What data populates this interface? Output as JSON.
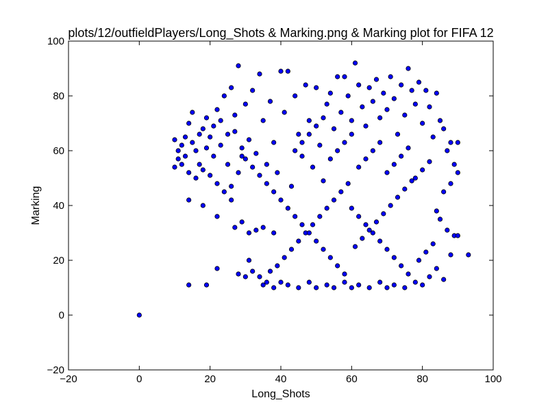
{
  "chart_data": {
    "type": "scatter",
    "title": "plots/12/outfieldPlayers/Long_Shots & Marking.png & Marking plot for FIFA 12",
    "xlabel": "Long_Shots",
    "ylabel": "Marking",
    "xlim": [
      -20,
      100
    ],
    "ylim": [
      -20,
      100
    ],
    "xticks": [
      "−20",
      "0",
      "20",
      "40",
      "60",
      "80",
      "100"
    ],
    "yticks": [
      "−20",
      "0",
      "20",
      "40",
      "60",
      "80",
      "100"
    ],
    "grid": false,
    "legend": "none",
    "marker_color": "#0000ff",
    "marker_edge": "#000000",
    "series": [
      {
        "points": [
          [
            0,
            0
          ],
          [
            14,
            11
          ],
          [
            19,
            11
          ],
          [
            22,
            17
          ],
          [
            28,
            15
          ],
          [
            30,
            14
          ],
          [
            31,
            20
          ],
          [
            32,
            16
          ],
          [
            34,
            14
          ],
          [
            35,
            11
          ],
          [
            36,
            12
          ],
          [
            22,
            36
          ],
          [
            18,
            40
          ],
          [
            14,
            42
          ],
          [
            26,
            42
          ],
          [
            27,
            32
          ],
          [
            29,
            34
          ],
          [
            31,
            30
          ],
          [
            33,
            31
          ],
          [
            35,
            32
          ],
          [
            38,
            30
          ],
          [
            10,
            54
          ],
          [
            11,
            57
          ],
          [
            12,
            62
          ],
          [
            13,
            65
          ],
          [
            14,
            70
          ],
          [
            15,
            74
          ],
          [
            16,
            60
          ],
          [
            17,
            55
          ],
          [
            18,
            68
          ],
          [
            19,
            72
          ],
          [
            20,
            65
          ],
          [
            21,
            58
          ],
          [
            22,
            75
          ],
          [
            23,
            62
          ],
          [
            24,
            80
          ],
          [
            25,
            55
          ],
          [
            26,
            83
          ],
          [
            27,
            67
          ],
          [
            28,
            91
          ],
          [
            29,
            58
          ],
          [
            30,
            77
          ],
          [
            31,
            64
          ],
          [
            32,
            82
          ],
          [
            33,
            59
          ],
          [
            34,
            88
          ],
          [
            35,
            71
          ],
          [
            36,
            55
          ],
          [
            37,
            78
          ],
          [
            38,
            63
          ],
          [
            39,
            52
          ],
          [
            40,
            89
          ],
          [
            41,
            74
          ],
          [
            42,
            89
          ],
          [
            43,
            47
          ],
          [
            44,
            80
          ],
          [
            45,
            66
          ],
          [
            46,
            58
          ],
          [
            47,
            84
          ],
          [
            48,
            71
          ],
          [
            49,
            54
          ],
          [
            50,
            83
          ],
          [
            51,
            62
          ],
          [
            52,
            49
          ],
          [
            53,
            77
          ],
          [
            54,
            81
          ],
          [
            55,
            68
          ],
          [
            56,
            87
          ],
          [
            57,
            74
          ],
          [
            58,
            87
          ],
          [
            59,
            80
          ],
          [
            60,
            71
          ],
          [
            61,
            92
          ],
          [
            62,
            84
          ],
          [
            63,
            76
          ],
          [
            64,
            69
          ],
          [
            65,
            83
          ],
          [
            66,
            78
          ],
          [
            67,
            86
          ],
          [
            68,
            72
          ],
          [
            69,
            81
          ],
          [
            70,
            75
          ],
          [
            71,
            87
          ],
          [
            72,
            79
          ],
          [
            73,
            66
          ],
          [
            74,
            84
          ],
          [
            75,
            73
          ],
          [
            76,
            90
          ],
          [
            77,
            82
          ],
          [
            78,
            77
          ],
          [
            79,
            85
          ],
          [
            80,
            70
          ],
          [
            81,
            82
          ],
          [
            82,
            76
          ],
          [
            83,
            65
          ],
          [
            84,
            81
          ],
          [
            85,
            71
          ],
          [
            86,
            68
          ],
          [
            87,
            60
          ],
          [
            88,
            63
          ],
          [
            89,
            55
          ],
          [
            90,
            63
          ],
          [
            90,
            52
          ],
          [
            88,
            48
          ],
          [
            86,
            45
          ],
          [
            89,
            29
          ],
          [
            90,
            29
          ],
          [
            93,
            22
          ],
          [
            88,
            22
          ],
          [
            87,
            31
          ],
          [
            85,
            35
          ],
          [
            84,
            38
          ],
          [
            86,
            13
          ],
          [
            84,
            17
          ],
          [
            82,
            14
          ],
          [
            80,
            11
          ],
          [
            78,
            12
          ],
          [
            75,
            10
          ],
          [
            72,
            11
          ],
          [
            70,
            10
          ],
          [
            68,
            12
          ],
          [
            65,
            10
          ],
          [
            62,
            11
          ],
          [
            60,
            10
          ],
          [
            58,
            12
          ],
          [
            55,
            10
          ],
          [
            53,
            11
          ],
          [
            50,
            10
          ],
          [
            48,
            12
          ],
          [
            45,
            10
          ],
          [
            42,
            11
          ],
          [
            40,
            12
          ],
          [
            38,
            10
          ],
          [
            37,
            16
          ],
          [
            39,
            18
          ],
          [
            41,
            21
          ],
          [
            43,
            24
          ],
          [
            45,
            27
          ],
          [
            47,
            30
          ],
          [
            49,
            33
          ],
          [
            51,
            36
          ],
          [
            53,
            39
          ],
          [
            55,
            42
          ],
          [
            57,
            45
          ],
          [
            59,
            48
          ],
          [
            61,
            25
          ],
          [
            63,
            28
          ],
          [
            65,
            31
          ],
          [
            67,
            34
          ],
          [
            69,
            37
          ],
          [
            71,
            40
          ],
          [
            73,
            43
          ],
          [
            75,
            46
          ],
          [
            77,
            49
          ],
          [
            79,
            20
          ],
          [
            81,
            23
          ],
          [
            83,
            26
          ],
          [
            76,
            15
          ],
          [
            74,
            18
          ],
          [
            72,
            21
          ],
          [
            70,
            24
          ],
          [
            68,
            27
          ],
          [
            66,
            30
          ],
          [
            64,
            33
          ],
          [
            62,
            36
          ],
          [
            60,
            39
          ],
          [
            58,
            15
          ],
          [
            56,
            18
          ],
          [
            54,
            21
          ],
          [
            52,
            24
          ],
          [
            50,
            27
          ],
          [
            48,
            30
          ],
          [
            46,
            33
          ],
          [
            44,
            36
          ],
          [
            42,
            39
          ],
          [
            40,
            42
          ],
          [
            38,
            45
          ],
          [
            36,
            48
          ],
          [
            34,
            51
          ],
          [
            32,
            54
          ],
          [
            30,
            57
          ],
          [
            28,
            52
          ],
          [
            26,
            47
          ],
          [
            24,
            45
          ],
          [
            22,
            48
          ],
          [
            20,
            51
          ],
          [
            18,
            53
          ],
          [
            16,
            50
          ],
          [
            14,
            52
          ],
          [
            12,
            55
          ],
          [
            11,
            60
          ],
          [
            10,
            64
          ],
          [
            13,
            58
          ],
          [
            15,
            63
          ],
          [
            17,
            66
          ],
          [
            19,
            61
          ],
          [
            21,
            69
          ],
          [
            23,
            71
          ],
          [
            25,
            66
          ],
          [
            27,
            73
          ],
          [
            29,
            61
          ],
          [
            44,
            60
          ],
          [
            46,
            63
          ],
          [
            48,
            66
          ],
          [
            50,
            69
          ],
          [
            52,
            72
          ],
          [
            54,
            57
          ],
          [
            56,
            60
          ],
          [
            58,
            63
          ],
          [
            60,
            66
          ],
          [
            62,
            54
          ],
          [
            64,
            57
          ],
          [
            66,
            60
          ],
          [
            68,
            63
          ],
          [
            70,
            52
          ],
          [
            72,
            55
          ],
          [
            74,
            58
          ],
          [
            76,
            61
          ],
          [
            78,
            50
          ],
          [
            80,
            53
          ],
          [
            82,
            56
          ]
        ]
      }
    ]
  }
}
